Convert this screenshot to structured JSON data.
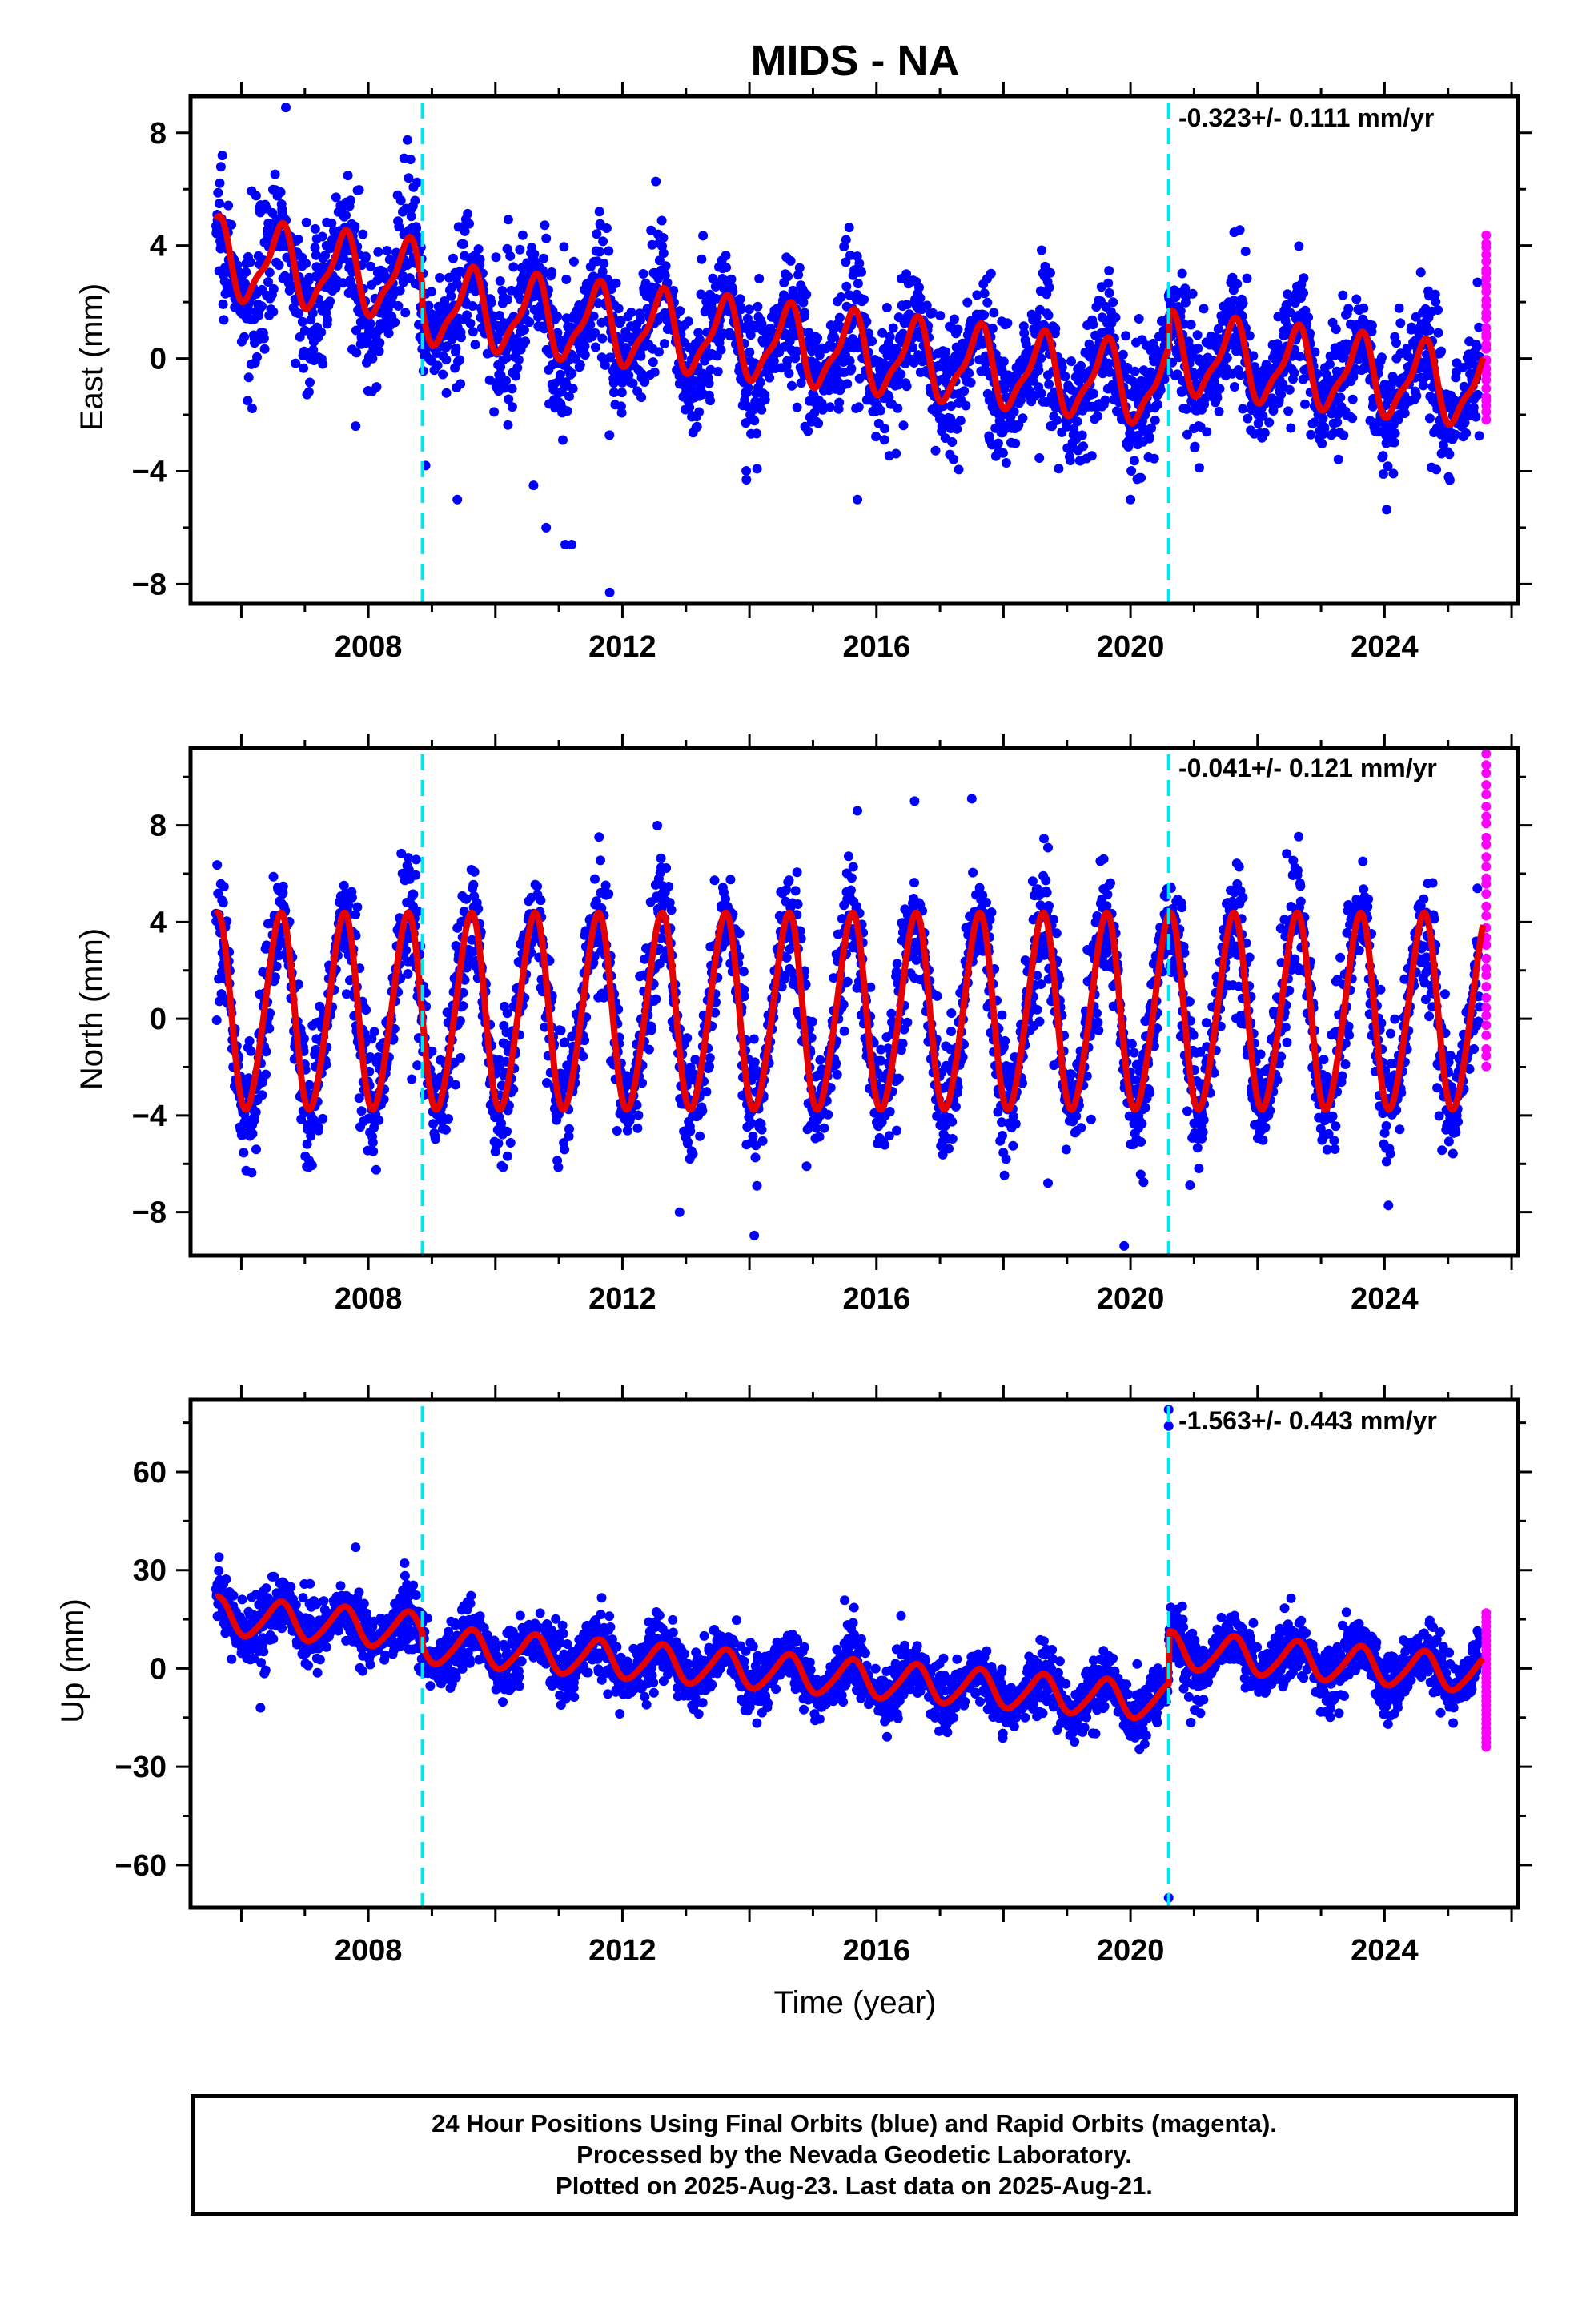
{
  "title": "MIDS - NA",
  "x_axis_label": "Time (year)",
  "colors": {
    "final_points": "#0000ff",
    "rapid_points": "#ff00ff",
    "fit_line": "#e60000",
    "discontinuity": "#00e5ee"
  },
  "footer": {
    "line1": "24 Hour Positions Using Final Orbits (blue) and Rapid Orbits (magenta).",
    "line2": "Processed by the Nevada Geodetic Laboratory.",
    "line3": "Plotted on 2025-Aug-23. Last data on 2025-Aug-21."
  },
  "chart_data": [
    {
      "type": "scatter",
      "component": "east",
      "ylabel": "East (mm)",
      "rate_label": "-0.323+/- 0.111 mm/yr",
      "xlim": [
        2005.2,
        2026.1
      ],
      "ylim": [
        -8.7,
        9.3
      ],
      "x_ticks": [
        2008,
        2012,
        2016,
        2020,
        2024
      ],
      "y_ticks": [
        -8,
        -4,
        0,
        4,
        8
      ],
      "y_tick_labels": [
        "−8",
        "−4",
        "0",
        "4",
        "8"
      ],
      "discontinuities": [
        2008.85,
        2020.6
      ],
      "series": [
        {
          "kind": "final",
          "x_start": 2005.6,
          "x_end": 2025.5,
          "trend_start": 3.3,
          "slope": -0.25,
          "annual_amp": 1.3,
          "noise": 1.1,
          "offsets": [
            {
              "after": 2008.85,
              "value": -0.6
            },
            {
              "after": 2020.6,
              "value": 1.2
            }
          ],
          "outliers": [
            [
              2006.7,
              8.9
            ],
            [
              2006.1,
              -1.5
            ],
            [
              2007.8,
              -2.4
            ],
            [
              2008.9,
              -3.8
            ],
            [
              2009.4,
              -5.0
            ],
            [
              2010.6,
              -4.5
            ],
            [
              2010.8,
              -6.0
            ],
            [
              2011.1,
              -6.6
            ],
            [
              2011.2,
              -6.6
            ],
            [
              2011.8,
              -8.3
            ],
            [
              2015.7,
              -5.0
            ],
            [
              2020.0,
              -5.0
            ]
          ]
        },
        {
          "kind": "rapid",
          "x": 2025.6,
          "y_min": -2.2,
          "y_max": 4.3,
          "count": 30
        }
      ],
      "fit": {
        "x_start": 2005.6,
        "x_end": 2025.55,
        "start_value": 3.5,
        "slope": -0.25,
        "annual_amp": 1.3,
        "semiannual_amp": 0.4,
        "offsets": [
          {
            "after": 2008.85,
            "value": -0.8
          },
          {
            "after": 2020.6,
            "value": 1.2
          }
        ]
      }
    },
    {
      "type": "scatter",
      "component": "north",
      "ylabel": "North (mm)",
      "rate_label": "-0.041+/- 0.121 mm/yr",
      "xlim": [
        2005.2,
        2026.1
      ],
      "ylim": [
        -9.8,
        11.2
      ],
      "x_ticks": [
        2008,
        2012,
        2016,
        2020,
        2024
      ],
      "y_ticks": [
        -8,
        -4,
        0,
        4,
        8
      ],
      "y_tick_labels": [
        "−8",
        "−4",
        "0",
        "4",
        "8"
      ],
      "discontinuities": [
        2008.85,
        2020.6
      ],
      "series": [
        {
          "kind": "final",
          "x_start": 2005.6,
          "x_end": 2025.5,
          "trend_start": 0.2,
          "slope": 0.0,
          "annual_amp": 3.9,
          "noise": 1.2,
          "offsets": [],
          "outliers": [
            [
              2019.9,
              -9.4
            ],
            [
              2018.7,
              -6.8
            ],
            [
              2014.9,
              -6.1
            ],
            [
              2012.9,
              -8.0
            ],
            [
              2015.7,
              8.6
            ],
            [
              2016.6,
              9.0
            ],
            [
              2017.5,
              9.1
            ]
          ]
        },
        {
          "kind": "rapid",
          "x": 2025.6,
          "y_min": -2.0,
          "y_max": 10.9,
          "count": 32
        }
      ],
      "fit": {
        "x_start": 2005.6,
        "x_end": 2025.55,
        "start_value": 0.2,
        "slope": 0.0,
        "annual_amp": 4.0,
        "semiannual_amp": 0.4,
        "offsets": []
      }
    },
    {
      "type": "scatter",
      "component": "up",
      "ylabel": "Up (mm)",
      "rate_label": "-1.563+/- 0.443 mm/yr",
      "xlim": [
        2005.2,
        2026.1
      ],
      "ylim": [
        -73,
        82
      ],
      "x_ticks": [
        2008,
        2012,
        2016,
        2020,
        2024
      ],
      "y_ticks": [
        -60,
        -30,
        0,
        30,
        60
      ],
      "y_tick_labels": [
        "−60",
        "−30",
        "0",
        "30",
        "60"
      ],
      "discontinuities": [
        2008.85,
        2020.6
      ],
      "series": [
        {
          "kind": "final",
          "x_start": 2005.6,
          "x_end": 2025.5,
          "trend_start": 16.0,
          "slope": -1.5,
          "annual_amp": 5.5,
          "noise": 4.5,
          "offsets": [
            {
              "after": 2008.85,
              "value": -4.0
            },
            {
              "after": 2020.6,
              "value": 16.0
            }
          ],
          "outliers": [
            [
              2020.6,
              79.0
            ],
            [
              2020.6,
              74.0
            ],
            [
              2020.6,
              -70.0
            ],
            [
              2006.3,
              -12.0
            ],
            [
              2007.8,
              37.0
            ]
          ]
        },
        {
          "kind": "rapid",
          "x": 2025.6,
          "y_min": -24.0,
          "y_max": 17.0,
          "count": 30
        }
      ],
      "fit": {
        "x_start": 2005.6,
        "x_end": 2025.55,
        "start_value": 16.0,
        "slope": -1.5,
        "annual_amp": 5.5,
        "semiannual_amp": 0.8,
        "offsets": [
          {
            "after": 2008.85,
            "value": -4.0
          },
          {
            "after": 2020.6,
            "value": 16.0
          }
        ]
      }
    }
  ]
}
